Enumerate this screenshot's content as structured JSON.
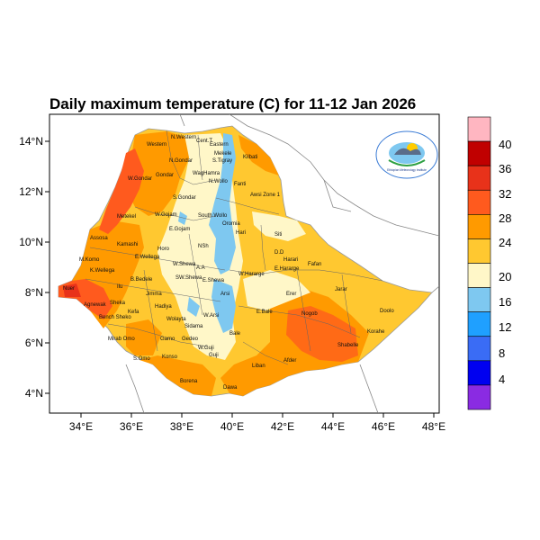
{
  "title": "Daily maximum temperature (C) for 11-12 Jan 2026",
  "lat_labels": [
    "14°N",
    "12°N",
    "10°N",
    "8°N",
    "6°N",
    "4°N"
  ],
  "lon_labels": [
    "34°E",
    "36°E",
    "38°E",
    "40°E",
    "42°E",
    "44°E",
    "46°E",
    "48°E"
  ],
  "colorbar": {
    "labels": [
      "40",
      "36",
      "32",
      "28",
      "24",
      "20",
      "16",
      "12",
      "8",
      "4"
    ],
    "colors": [
      "#ffb6c1",
      "#c00000",
      "#e8321a",
      "#ff5a1e",
      "#ff9a00",
      "#ffc830",
      "#fff7c8",
      "#7ec8f0",
      "#1fa0ff",
      "#3a6cf5",
      "#0000f0",
      "#8a2be2"
    ]
  },
  "regions": {
    "western": "Western",
    "n_western": "N.Western",
    "central": "Cent.T",
    "eastern": "Eastern",
    "mekele": "Mekele",
    "s_tigray": "S.Tigray",
    "kilbati": "Kilbati",
    "n_gondar": "N.Gondar",
    "gondar": "Gondar",
    "wag_hamra": "WagHamra",
    "n_wollo": "N.Wollo",
    "metekel_n": "W.Gondar",
    "s_gondar": "S.Gondar",
    "fanti": "Fanti",
    "awsi": "Awsi Zone 1",
    "w_gojam": "W.Gojam",
    "s_wollo": "South Wollo",
    "oromia": "Oromia",
    "metekel": "Metekel",
    "e_gojam": "E.Gojam",
    "hari": "Hari",
    "siti": "Siti",
    "assosa": "Assosa",
    "kamashi": "Kamashi",
    "horo": "Horo",
    "nsh": "NSh",
    "dd": "D.D",
    "harari": "Harari",
    "fafan": "Fafan",
    "m_komo": "M.Komo",
    "e_wellega": "E.Wellega",
    "w_shewa": "W.Shewa",
    "aa": "A.A",
    "w_hararge": "W.Hararge",
    "e_hararge": "E.Hararge",
    "k_wellega": "K.Wellega",
    "bedele": "B.Bedele",
    "sw_shewa": "SW.Shewa",
    "e_shewa": "E.Shewa",
    "nuer": "Nuer",
    "ilu": "Ilu",
    "jimma": "Jimma",
    "arsi": "Arsi",
    "erer": "Erer",
    "jarar": "Jarar",
    "agnewak": "Agnewak",
    "sheka": "Sheka",
    "kefa": "Kefa",
    "hadiya": "Hadiya",
    "bench": "Bench Sheko",
    "w_arsi": "W.Arsi",
    "e_bale": "E.Bale",
    "nogob": "Nogob",
    "doolo": "Doolo",
    "wolayta": "Wolayta",
    "sidama": "Sidama",
    "bale": "Bale",
    "mirab_omo": "Mirab Omo",
    "gamo": "Gamo",
    "gedeo": "Gedeo",
    "korahe": "Korahe",
    "shabelle": "Shabelle",
    "s_omo": "S.Omo",
    "konso": "Konso",
    "w_guji": "W.Guji",
    "guji": "Guji",
    "liban": "Liban",
    "afder": "Afder",
    "borena": "Borena",
    "dawa": "Dawa"
  },
  "logo": {
    "caption": "Ethiopian Meteorology Institute"
  }
}
